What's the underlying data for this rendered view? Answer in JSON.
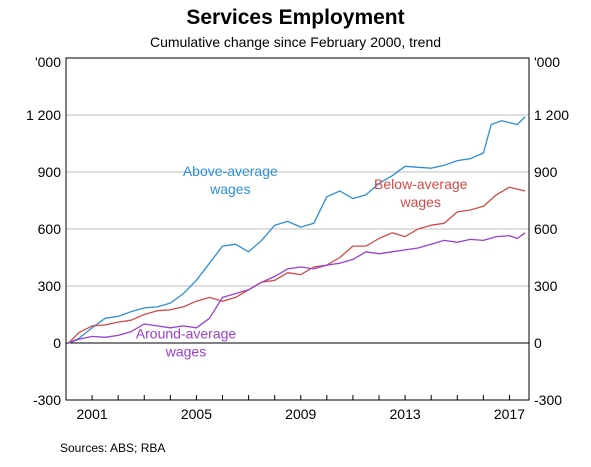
{
  "chart_data": {
    "type": "line",
    "title": "Services Employment",
    "subtitle": "Cumulative change since February 2000, trend",
    "unit_label": "'000",
    "source": "Sources:  ABS; RBA",
    "x_ticks": [
      2001,
      2005,
      2009,
      2013,
      2017
    ],
    "xlim": [
      2000.0,
      2017.75
    ],
    "y_ticks": [
      -300,
      0,
      300,
      600,
      900,
      1200
    ],
    "y_tick_labels": [
      "-300",
      "0",
      "300",
      "600",
      "900",
      "1 200"
    ],
    "ylim": [
      -300,
      1500
    ],
    "series": [
      {
        "name": "Above-average wages",
        "label_lines": [
          "Above-average",
          "wages"
        ],
        "color": "#2e8fd6",
        "points": [
          [
            2000.1,
            0
          ],
          [
            2000.5,
            25
          ],
          [
            2001.0,
            80
          ],
          [
            2001.5,
            130
          ],
          [
            2002.0,
            140
          ],
          [
            2002.5,
            165
          ],
          [
            2003.0,
            185
          ],
          [
            2003.5,
            190
          ],
          [
            2004.0,
            210
          ],
          [
            2004.5,
            260
          ],
          [
            2005.0,
            330
          ],
          [
            2005.5,
            420
          ],
          [
            2006.0,
            510
          ],
          [
            2006.5,
            520
          ],
          [
            2007.0,
            480
          ],
          [
            2007.5,
            540
          ],
          [
            2008.0,
            620
          ],
          [
            2008.5,
            640
          ],
          [
            2009.0,
            610
          ],
          [
            2009.5,
            630
          ],
          [
            2010.0,
            770
          ],
          [
            2010.5,
            800
          ],
          [
            2011.0,
            760
          ],
          [
            2011.5,
            780
          ],
          [
            2012.0,
            840
          ],
          [
            2012.5,
            880
          ],
          [
            2013.0,
            930
          ],
          [
            2013.5,
            925
          ],
          [
            2014.0,
            920
          ],
          [
            2014.5,
            935
          ],
          [
            2015.0,
            960
          ],
          [
            2015.5,
            970
          ],
          [
            2016.0,
            1000
          ],
          [
            2016.3,
            1150
          ],
          [
            2016.7,
            1170
          ],
          [
            2017.0,
            1160
          ],
          [
            2017.3,
            1150
          ],
          [
            2017.6,
            1190
          ]
        ]
      },
      {
        "name": "Below-average wages",
        "label_lines": [
          "Below-average",
          "wages"
        ],
        "color": "#d24b46",
        "points": [
          [
            2000.1,
            0
          ],
          [
            2000.5,
            55
          ],
          [
            2001.0,
            90
          ],
          [
            2001.5,
            95
          ],
          [
            2002.0,
            110
          ],
          [
            2002.5,
            120
          ],
          [
            2003.0,
            150
          ],
          [
            2003.5,
            170
          ],
          [
            2004.0,
            175
          ],
          [
            2004.5,
            190
          ],
          [
            2005.0,
            220
          ],
          [
            2005.5,
            240
          ],
          [
            2006.0,
            220
          ],
          [
            2006.5,
            240
          ],
          [
            2007.0,
            280
          ],
          [
            2007.5,
            320
          ],
          [
            2008.0,
            330
          ],
          [
            2008.5,
            370
          ],
          [
            2009.0,
            360
          ],
          [
            2009.5,
            400
          ],
          [
            2010.0,
            410
          ],
          [
            2010.5,
            450
          ],
          [
            2011.0,
            510
          ],
          [
            2011.5,
            510
          ],
          [
            2012.0,
            550
          ],
          [
            2012.5,
            580
          ],
          [
            2013.0,
            560
          ],
          [
            2013.5,
            600
          ],
          [
            2014.0,
            620
          ],
          [
            2014.5,
            630
          ],
          [
            2015.0,
            690
          ],
          [
            2015.5,
            700
          ],
          [
            2016.0,
            720
          ],
          [
            2016.5,
            780
          ],
          [
            2017.0,
            820
          ],
          [
            2017.3,
            810
          ],
          [
            2017.6,
            800
          ]
        ]
      },
      {
        "name": "Around-average wages",
        "label_lines": [
          "Around-average",
          "wages"
        ],
        "color": "#9b3fd1",
        "points": [
          [
            2000.1,
            0
          ],
          [
            2000.5,
            20
          ],
          [
            2001.0,
            35
          ],
          [
            2001.5,
            30
          ],
          [
            2002.0,
            40
          ],
          [
            2002.5,
            60
          ],
          [
            2003.0,
            100
          ],
          [
            2003.5,
            90
          ],
          [
            2004.0,
            80
          ],
          [
            2004.5,
            90
          ],
          [
            2005.0,
            80
          ],
          [
            2005.5,
            130
          ],
          [
            2006.0,
            240
          ],
          [
            2006.5,
            260
          ],
          [
            2007.0,
            280
          ],
          [
            2007.5,
            320
          ],
          [
            2008.0,
            350
          ],
          [
            2008.5,
            390
          ],
          [
            2009.0,
            400
          ],
          [
            2009.5,
            390
          ],
          [
            2010.0,
            410
          ],
          [
            2010.5,
            420
          ],
          [
            2011.0,
            440
          ],
          [
            2011.5,
            480
          ],
          [
            2012.0,
            470
          ],
          [
            2012.5,
            480
          ],
          [
            2013.0,
            490
          ],
          [
            2013.5,
            500
          ],
          [
            2014.0,
            520
          ],
          [
            2014.5,
            540
          ],
          [
            2015.0,
            530
          ],
          [
            2015.5,
            545
          ],
          [
            2016.0,
            540
          ],
          [
            2016.5,
            560
          ],
          [
            2017.0,
            565
          ],
          [
            2017.3,
            550
          ],
          [
            2017.6,
            580
          ]
        ]
      }
    ]
  }
}
